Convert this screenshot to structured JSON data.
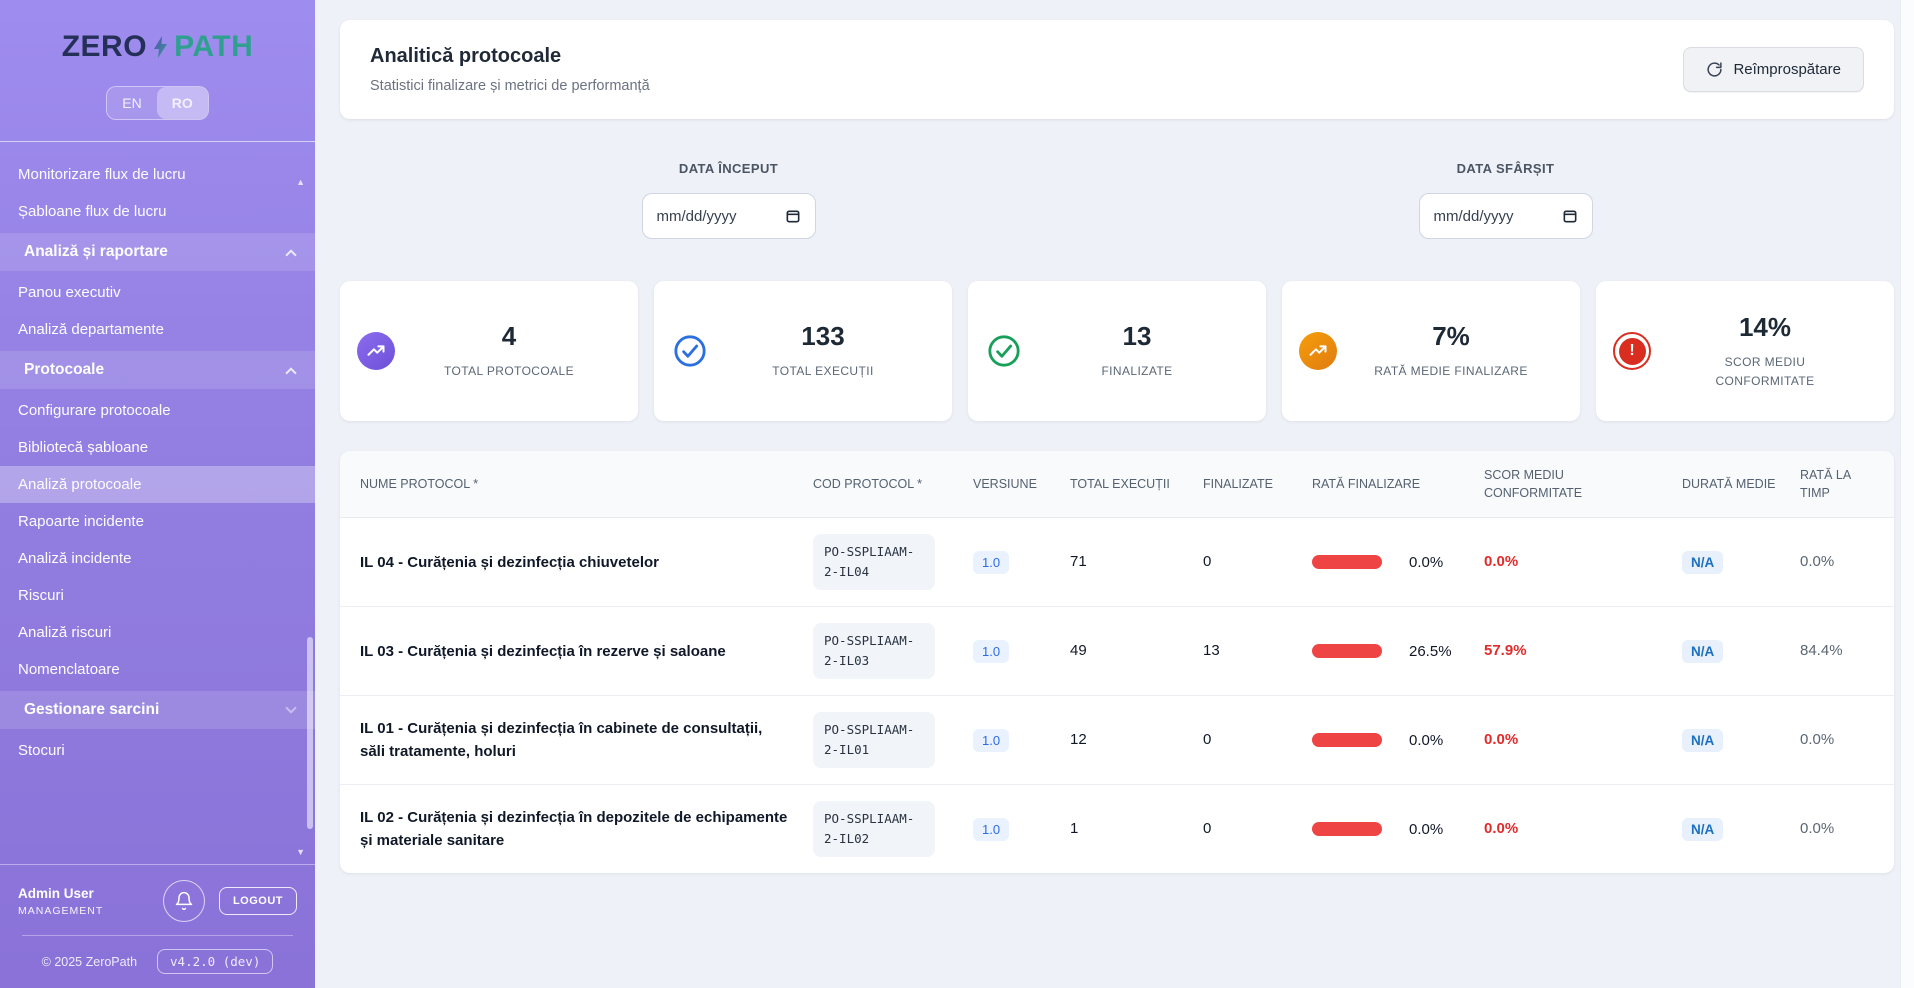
{
  "sidebar": {
    "logo": {
      "zero": "ZERO",
      "path": "PATH"
    },
    "lang": {
      "en": "EN",
      "ro": "RO",
      "selected": "RO"
    },
    "nav": [
      {
        "label": "Monitorizare flux de lucru",
        "type": "item"
      },
      {
        "label": "Șabloane flux de lucru",
        "type": "item"
      },
      {
        "label": "Analiză și raportare",
        "type": "section",
        "chevron": "up"
      },
      {
        "label": "Panou executiv",
        "type": "item"
      },
      {
        "label": "Analiză departamente",
        "type": "item"
      },
      {
        "label": "Protocoale",
        "type": "section",
        "chevron": "up"
      },
      {
        "label": "Configurare protocoale",
        "type": "item"
      },
      {
        "label": "Bibliotecă șabloane",
        "type": "item"
      },
      {
        "label": "Analiză protocoale",
        "type": "item",
        "active": true
      },
      {
        "label": "Rapoarte incidente",
        "type": "item"
      },
      {
        "label": "Analiză incidente",
        "type": "item"
      },
      {
        "label": "Riscuri",
        "type": "item"
      },
      {
        "label": "Analiză riscuri",
        "type": "item"
      },
      {
        "label": "Nomenclatoare",
        "type": "item"
      },
      {
        "label": "Gestionare sarcini",
        "type": "section",
        "chevron": "down"
      },
      {
        "label": "Stocuri",
        "type": "item"
      }
    ],
    "user": {
      "name": "Admin User",
      "role": "MANAGEMENT",
      "logout_label": "LOGOUT"
    },
    "footer": {
      "copyright": "© 2025 ZeroPath",
      "version": "v4.2.0 (dev)"
    }
  },
  "header": {
    "title": "Analitică protocoale",
    "subtitle": "Statistici finalizare și metrici de performanță",
    "refresh_label": "Reîmprospătare"
  },
  "filters": {
    "start_label": "DATA ÎNCEPUT",
    "end_label": "DATA SFÂRȘIT",
    "placeholder": "mm/dd/yyyy"
  },
  "stats": [
    {
      "icon": "trending-up-icon",
      "style": "purple-filled",
      "value": "4",
      "label": "TOTAL PROTOCOALE"
    },
    {
      "icon": "check-circle-icon",
      "style": "blue-outline",
      "value": "133",
      "label": "TOTAL EXECUȚII"
    },
    {
      "icon": "check-circle-icon",
      "style": "green-outline",
      "value": "13",
      "label": "FINALIZATE"
    },
    {
      "icon": "trending-up-icon",
      "style": "orange-filled",
      "value": "7%",
      "label": "RATĂ MEDIE FINALIZARE"
    },
    {
      "icon": "alert-circle-icon",
      "style": "red-filled",
      "value": "14%",
      "label": "SCOR MEDIU CONFORMITATE"
    }
  ],
  "table": {
    "columns": [
      "NUME PROTOCOL *",
      "COD PROTOCOL *",
      "VERSIUNE",
      "TOTAL EXECUȚII",
      "FINALIZATE",
      "RATĂ FINALIZARE",
      "SCOR MEDIU CONFORMITATE",
      "DURATĂ MEDIE",
      "RATĂ LA TIMP"
    ],
    "rows": [
      {
        "name": "IL 04 - Curățenia și dezinfecția chiuvetelor",
        "code": "PO-SSPLIAAM-2-IL04",
        "version": "1.0",
        "total": "71",
        "finalized": "0",
        "rate": "0.0%",
        "score": "0.0%",
        "duration": "N/A",
        "ontime": "0.0%"
      },
      {
        "name": "IL 03 - Curățenia și dezinfecția în rezerve și saloane",
        "code": "PO-SSPLIAAM-2-IL03",
        "version": "1.0",
        "total": "49",
        "finalized": "13",
        "rate": "26.5%",
        "score": "57.9%",
        "duration": "N/A",
        "ontime": "84.4%"
      },
      {
        "name": "IL 01 - Curățenia și dezinfecția în cabinete de consultații, săli tratamente, holuri",
        "code": "PO-SSPLIAAM-2-IL01",
        "version": "1.0",
        "total": "12",
        "finalized": "0",
        "rate": "0.0%",
        "score": "0.0%",
        "duration": "N/A",
        "ontime": "0.0%"
      },
      {
        "name": "IL 02 - Curățenia și dezinfecția în depozitele de echipamente și materiale sanitare",
        "code": "PO-SSPLIAAM-2-IL02",
        "version": "1.0",
        "total": "1",
        "finalized": "0",
        "rate": "0.0%",
        "score": "0.0%",
        "duration": "N/A",
        "ontime": "0.0%"
      }
    ]
  },
  "colors": {
    "sidebar_purple": "#927ee0",
    "logo_navy": "#253058",
    "logo_teal": "#2fa08f",
    "accent_blue": "#2e6be6",
    "success_green": "#18a05a",
    "warning_orange": "#f59e0b",
    "danger_red": "#ef4444",
    "page_bg": "#eef1f7"
  }
}
